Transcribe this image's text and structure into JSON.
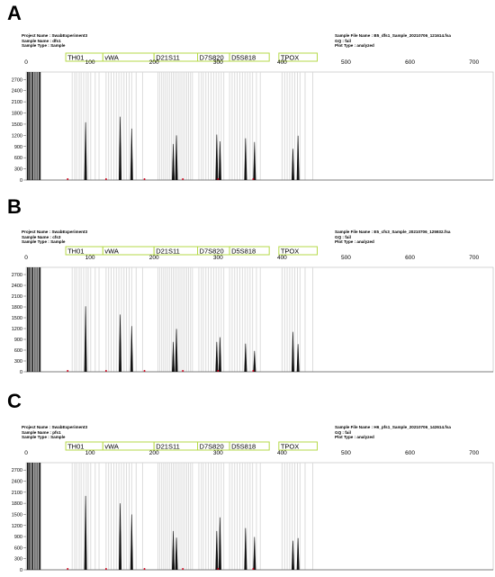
{
  "panels": [
    {
      "letter": "A",
      "meta_left": [
        "Project Name : SwabExperiment3",
        "Sample Name : dfs1",
        "Sample Type : Sample"
      ],
      "meta_right": [
        "Sample File Name : B5_dfs1_Sample_20210706_121614.fsa",
        "GQ : fail",
        "Plot Type : analyzed"
      ]
    },
    {
      "letter": "B",
      "meta_left": [
        "Project Name : SwabExperiment3",
        "Sample Name : cfs3",
        "Sample Type : Sample"
      ],
      "meta_right": [
        "Sample File Name : E5_cfs3_Sample_20210706_125932.fsa",
        "GQ : fail",
        "Plot Type : analyzed"
      ]
    },
    {
      "letter": "C",
      "meta_left": [
        "Project Name : SwabExperiment3",
        "Sample Name : pfs1",
        "Sample Type : Sample"
      ],
      "meta_right": [
        "Sample File Name : H6_pfs1_Sample_20210706_142614.fsa",
        "GQ : fail",
        "Plot Type : analyzed"
      ]
    }
  ],
  "chart_data": [
    {
      "type": "line",
      "x_ticks": [
        0,
        100,
        200,
        300,
        400,
        500,
        600,
        700
      ],
      "y_ticks": [
        0,
        300,
        600,
        900,
        1200,
        1500,
        1800,
        2100,
        2400,
        2700
      ],
      "xlim": [
        0,
        730
      ],
      "ylim": [
        0,
        2900
      ],
      "loci": [
        {
          "name": "TH01",
          "start": 62,
          "end": 120
        },
        {
          "name": "vWA",
          "start": 120,
          "end": 200
        },
        {
          "name": "D21S11",
          "start": 200,
          "end": 268
        },
        {
          "name": "D7S820",
          "start": 268,
          "end": 318
        },
        {
          "name": "D5S818",
          "start": 318,
          "end": 380
        },
        {
          "name": "TPOX",
          "start": 395,
          "end": 455
        }
      ],
      "bins": [
        72,
        76,
        79,
        83,
        86,
        90,
        94,
        97,
        101,
        108,
        114,
        125,
        129,
        133,
        137,
        141,
        145,
        149,
        153,
        157,
        161,
        165,
        172,
        182,
        206,
        209,
        212,
        215,
        218,
        221,
        224,
        227,
        230,
        233,
        236,
        239,
        242,
        245,
        248,
        251,
        254,
        257,
        260,
        270,
        274,
        277,
        281,
        285,
        289,
        293,
        297,
        301,
        305,
        309,
        318,
        322,
        326,
        330,
        334,
        338,
        342,
        346,
        350,
        354,
        360,
        366,
        400,
        404,
        408,
        412,
        416,
        420,
        424,
        428,
        436,
        448
      ],
      "peaks": [
        {
          "x": 93,
          "y": 1550
        },
        {
          "x": 147,
          "y": 1700
        },
        {
          "x": 165,
          "y": 1380
        },
        {
          "x": 230,
          "y": 970
        },
        {
          "x": 235,
          "y": 1200
        },
        {
          "x": 298,
          "y": 1220
        },
        {
          "x": 303,
          "y": 1040
        },
        {
          "x": 343,
          "y": 1120
        },
        {
          "x": 357,
          "y": 1020
        },
        {
          "x": 417,
          "y": 840
        },
        {
          "x": 425,
          "y": 1190
        }
      ]
    },
    {
      "type": "line",
      "x_ticks": [
        0,
        100,
        200,
        300,
        400,
        500,
        600,
        700
      ],
      "y_ticks": [
        0,
        300,
        600,
        900,
        1200,
        1500,
        1800,
        2100,
        2400,
        2700
      ],
      "xlim": [
        0,
        730
      ],
      "ylim": [
        0,
        2900
      ],
      "loci": [
        {
          "name": "TH01",
          "start": 62,
          "end": 120
        },
        {
          "name": "vWA",
          "start": 120,
          "end": 200
        },
        {
          "name": "D21S11",
          "start": 200,
          "end": 268
        },
        {
          "name": "D7S820",
          "start": 268,
          "end": 318
        },
        {
          "name": "D5S818",
          "start": 318,
          "end": 380
        },
        {
          "name": "TPOX",
          "start": 395,
          "end": 455
        }
      ],
      "bins": [
        72,
        76,
        79,
        83,
        86,
        90,
        94,
        97,
        101,
        108,
        114,
        125,
        129,
        133,
        137,
        141,
        145,
        149,
        153,
        157,
        161,
        165,
        172,
        182,
        206,
        209,
        212,
        215,
        218,
        221,
        224,
        227,
        230,
        233,
        236,
        239,
        242,
        245,
        248,
        251,
        254,
        257,
        260,
        270,
        274,
        277,
        281,
        285,
        289,
        293,
        297,
        301,
        305,
        309,
        318,
        322,
        326,
        330,
        334,
        338,
        342,
        346,
        350,
        354,
        360,
        366,
        400,
        404,
        408,
        412,
        416,
        420,
        424,
        428,
        436,
        448
      ],
      "peaks": [
        {
          "x": 93,
          "y": 1820
        },
        {
          "x": 147,
          "y": 1590
        },
        {
          "x": 165,
          "y": 1270
        },
        {
          "x": 230,
          "y": 830
        },
        {
          "x": 235,
          "y": 1190
        },
        {
          "x": 298,
          "y": 830
        },
        {
          "x": 303,
          "y": 960
        },
        {
          "x": 343,
          "y": 780
        },
        {
          "x": 357,
          "y": 580
        },
        {
          "x": 417,
          "y": 1110
        },
        {
          "x": 425,
          "y": 770
        }
      ]
    },
    {
      "type": "line",
      "x_ticks": [
        0,
        100,
        200,
        300,
        400,
        500,
        600,
        700
      ],
      "y_ticks": [
        0,
        300,
        600,
        900,
        1200,
        1500,
        1800,
        2100,
        2400,
        2700
      ],
      "xlim": [
        0,
        730
      ],
      "ylim": [
        0,
        2900
      ],
      "loci": [
        {
          "name": "TH01",
          "start": 62,
          "end": 120
        },
        {
          "name": "vWA",
          "start": 120,
          "end": 200
        },
        {
          "name": "D21S11",
          "start": 200,
          "end": 268
        },
        {
          "name": "D7S820",
          "start": 268,
          "end": 318
        },
        {
          "name": "D5S818",
          "start": 318,
          "end": 380
        },
        {
          "name": "TPOX",
          "start": 395,
          "end": 455
        }
      ],
      "bins": [
        72,
        76,
        79,
        83,
        86,
        90,
        94,
        97,
        101,
        108,
        114,
        125,
        129,
        133,
        137,
        141,
        145,
        149,
        153,
        157,
        161,
        165,
        172,
        182,
        206,
        209,
        212,
        215,
        218,
        221,
        224,
        227,
        230,
        233,
        236,
        239,
        242,
        245,
        248,
        251,
        254,
        257,
        260,
        270,
        274,
        277,
        281,
        285,
        289,
        293,
        297,
        301,
        305,
        309,
        318,
        322,
        326,
        330,
        334,
        338,
        342,
        346,
        350,
        354,
        360,
        366,
        400,
        404,
        408,
        412,
        416,
        420,
        424,
        428,
        436,
        448
      ],
      "peaks": [
        {
          "x": 93,
          "y": 2000
        },
        {
          "x": 147,
          "y": 1800
        },
        {
          "x": 165,
          "y": 1500
        },
        {
          "x": 230,
          "y": 1050
        },
        {
          "x": 235,
          "y": 870
        },
        {
          "x": 298,
          "y": 1050
        },
        {
          "x": 303,
          "y": 1420
        },
        {
          "x": 343,
          "y": 1130
        },
        {
          "x": 357,
          "y": 890
        },
        {
          "x": 417,
          "y": 790
        },
        {
          "x": 425,
          "y": 860
        }
      ]
    }
  ]
}
